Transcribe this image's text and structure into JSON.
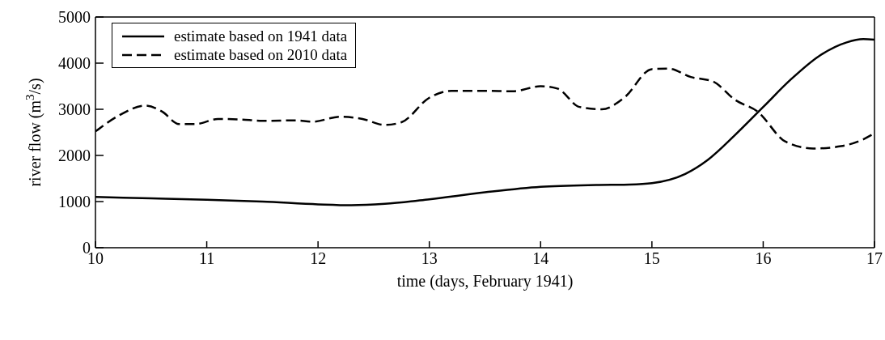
{
  "chart_data": {
    "type": "line",
    "xlabel": "time (days, February 1941)",
    "ylabel": "river flow (m$^{3}$/s)",
    "xlim": [
      10,
      17
    ],
    "xticks": [
      10,
      11,
      12,
      13,
      14,
      15,
      16,
      17
    ],
    "ylim": [
      0,
      5000
    ],
    "yticks": [
      0,
      1000,
      2000,
      3000,
      4000,
      5000
    ],
    "legend": "top left",
    "marker": "none",
    "series": [
      {
        "name": "estimate based on 1941 data",
        "color": "#000000",
        "line_style": "solid",
        "x": [
          10,
          10.5,
          11,
          11.5,
          12,
          12.3,
          12.6,
          13,
          13.5,
          14,
          14.5,
          14.8,
          15,
          15.3,
          15.5,
          15.75,
          16,
          16.25,
          16.5,
          16.75,
          16.9,
          17
        ],
        "values": [
          1100,
          1070,
          1040,
          1000,
          940,
          920,
          950,
          1050,
          1200,
          1320,
          1360,
          1370,
          1400,
          1600,
          1900,
          2450,
          3050,
          3650,
          4150,
          4450,
          4520,
          4510
        ]
      },
      {
        "name": "estimate based on 2010 data",
        "color": "#000000",
        "line_style": "dashed",
        "x": [
          10,
          10.2,
          10.45,
          10.6,
          10.75,
          10.9,
          11.1,
          11.3,
          11.5,
          11.8,
          11.95,
          12.2,
          12.4,
          12.6,
          12.75,
          13,
          13.2,
          13.5,
          13.75,
          14,
          14.15,
          14.35,
          14.55,
          14.75,
          15,
          15.15,
          15.35,
          15.55,
          15.75,
          15.95,
          16.2,
          16.45,
          16.7,
          16.9,
          17
        ],
        "values": [
          2520,
          2850,
          3080,
          2950,
          2680,
          2680,
          2790,
          2780,
          2750,
          2760,
          2730,
          2840,
          2790,
          2660,
          2720,
          3250,
          3400,
          3400,
          3390,
          3500,
          3450,
          3050,
          3000,
          3250,
          3870,
          3880,
          3700,
          3600,
          3200,
          2950,
          2300,
          2150,
          2200,
          2350,
          2480
        ]
      }
    ]
  }
}
